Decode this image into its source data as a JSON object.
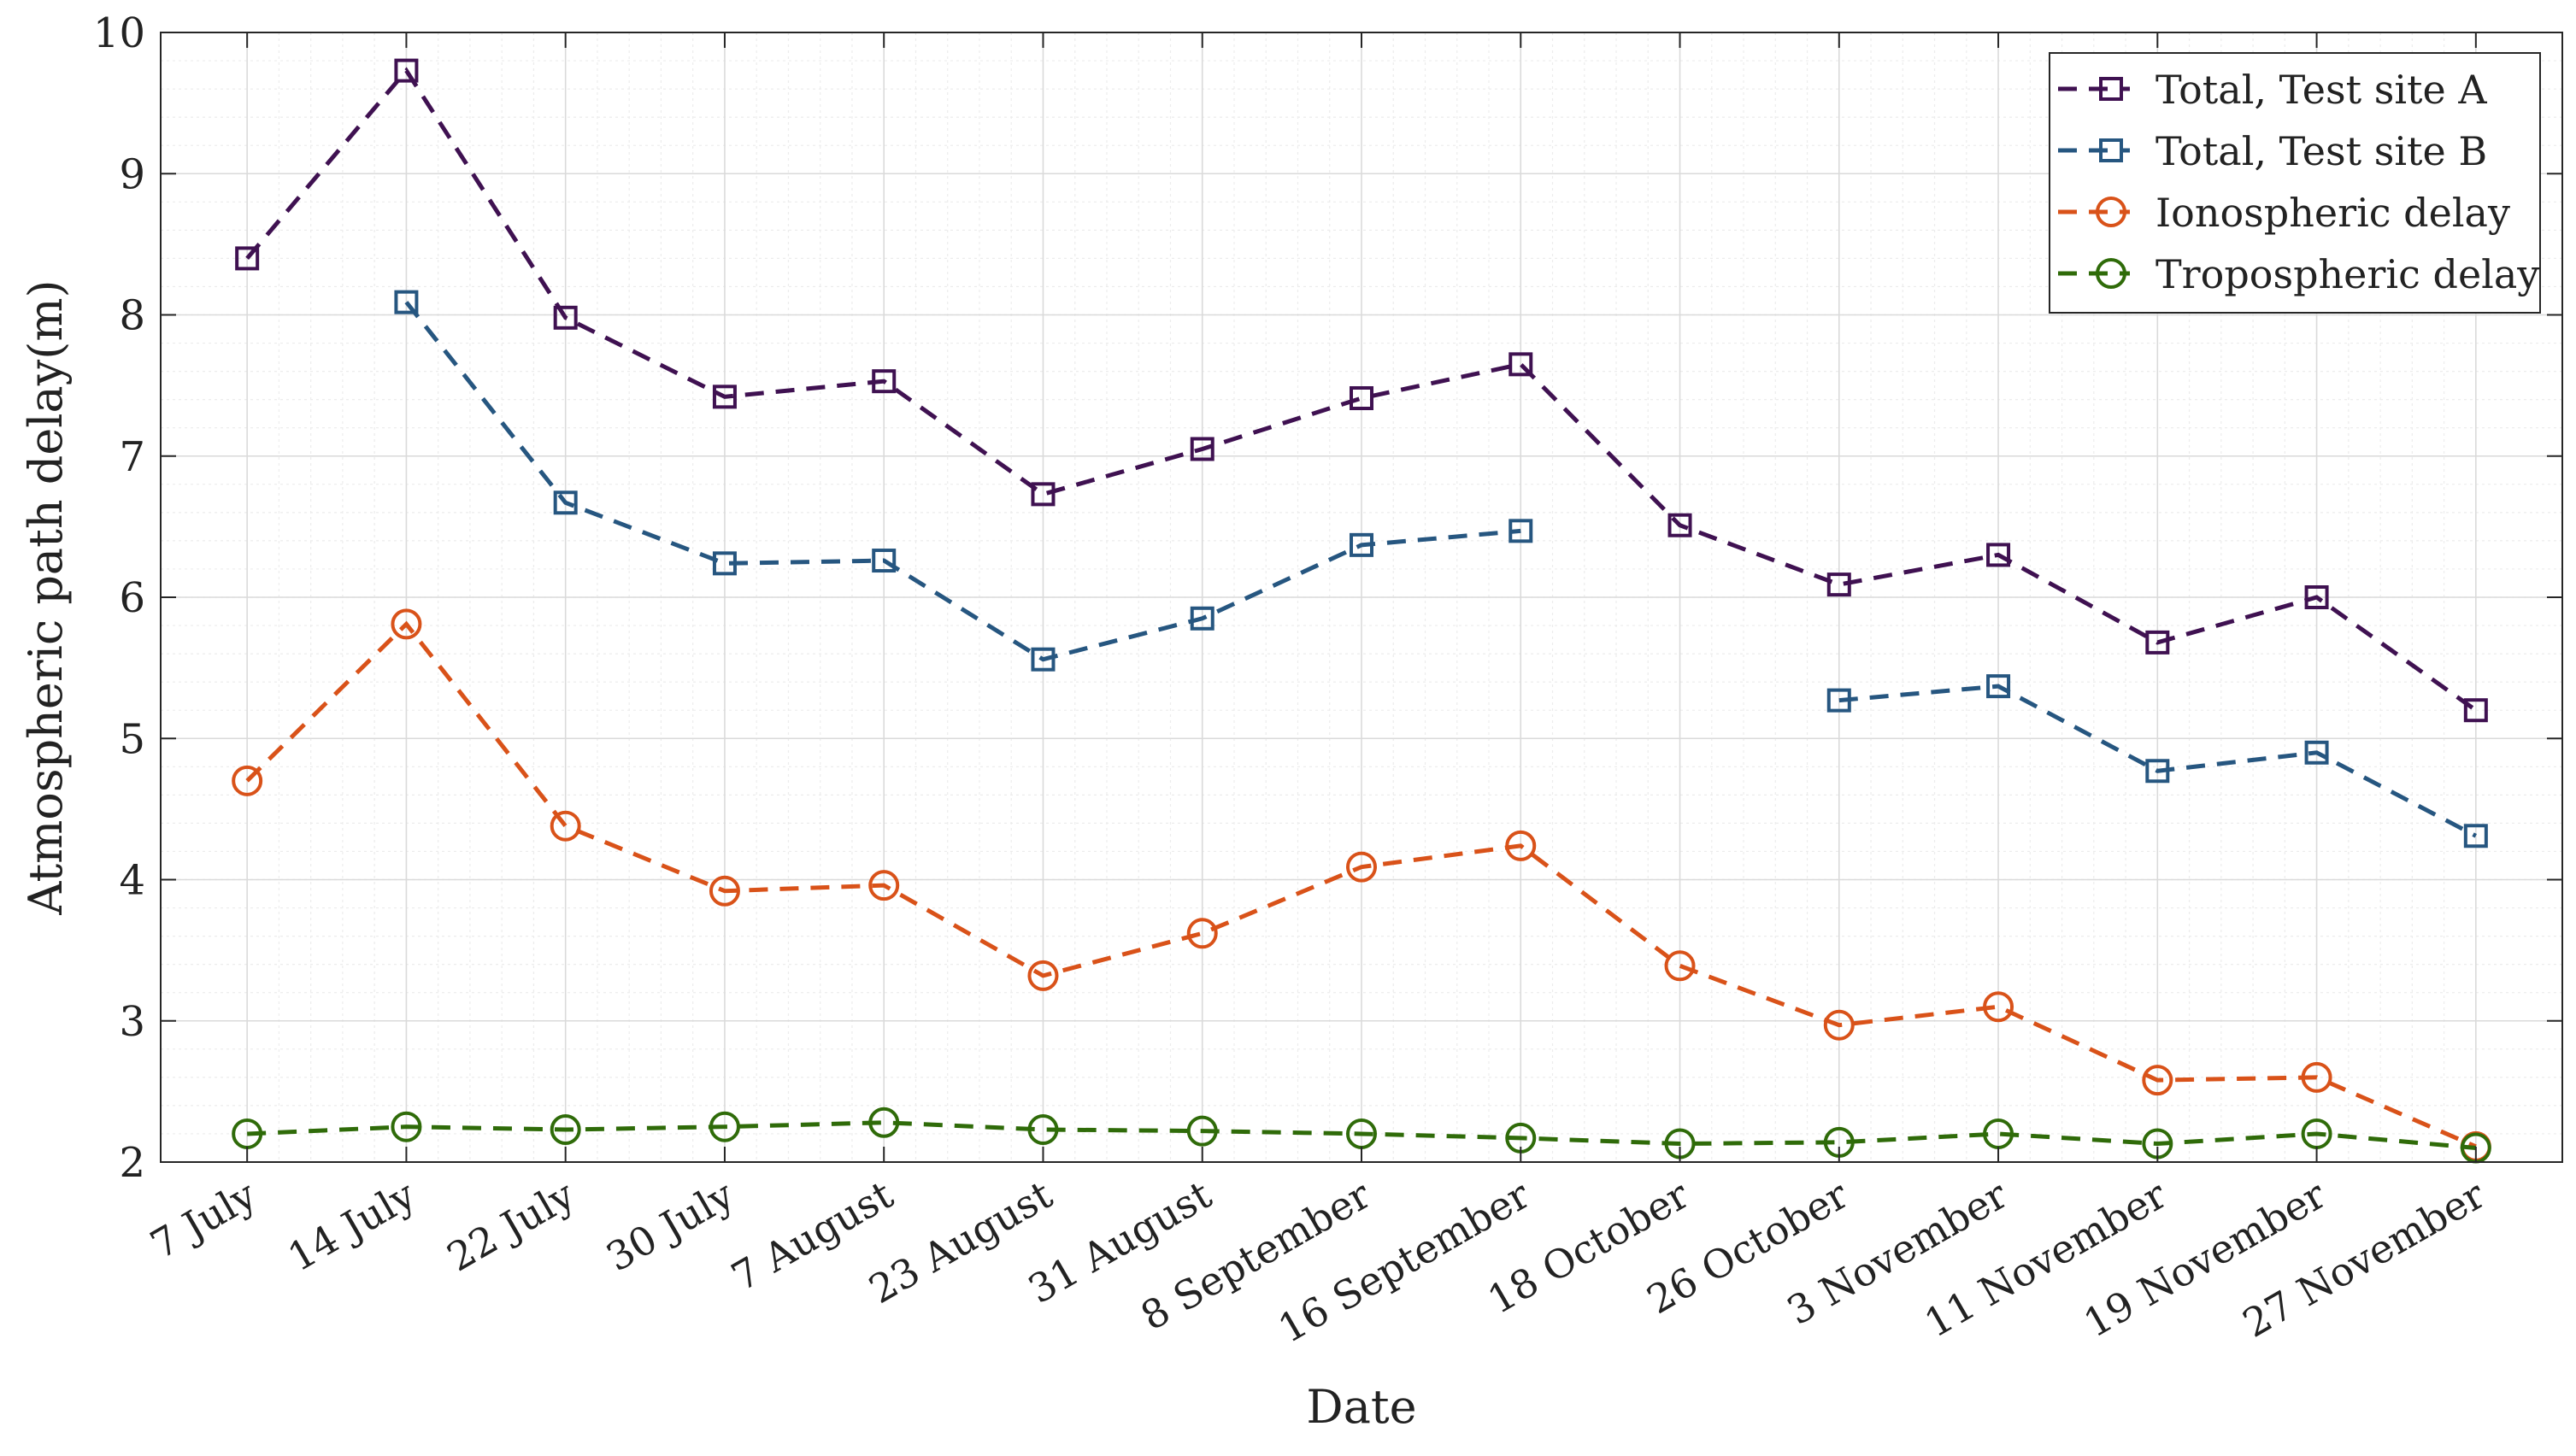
{
  "chart_data": {
    "type": "line",
    "title": "",
    "xlabel": "Date",
    "ylabel": "Atmospheric path delay(m)",
    "ylim": [
      2,
      10
    ],
    "yticks": [
      2,
      3,
      4,
      5,
      6,
      7,
      8,
      9,
      10
    ],
    "grid": true,
    "minor_grid": true,
    "legend_position": "top-right",
    "categories": [
      "7 July",
      "14 July",
      "22 July",
      "30 July",
      "7 August",
      "23 August",
      "31 August",
      "8 September",
      "16 September",
      "18 October",
      "26 October",
      "3 November",
      "11 November",
      "19 November",
      "27 November"
    ],
    "series": [
      {
        "name": "Total, Test site A",
        "color": "#3f1151",
        "marker": "square",
        "values": [
          8.4,
          9.73,
          7.98,
          7.42,
          7.53,
          6.73,
          7.05,
          7.41,
          7.65,
          6.51,
          6.09,
          6.3,
          5.68,
          6.0,
          5.2
        ]
      },
      {
        "name": "Total, Test site B",
        "color": "#265680",
        "marker": "square",
        "values": [
          null,
          8.09,
          6.67,
          6.24,
          6.26,
          5.56,
          5.85,
          6.37,
          6.47,
          null,
          5.27,
          5.37,
          4.77,
          4.9,
          4.31
        ]
      },
      {
        "name": "Ionospheric delay",
        "color": "#d95219",
        "marker": "circle",
        "values": [
          4.7,
          5.81,
          4.38,
          3.92,
          3.96,
          3.32,
          3.62,
          4.09,
          4.24,
          3.39,
          2.97,
          3.1,
          2.58,
          2.6,
          2.11
        ]
      },
      {
        "name": "Tropospheric delay",
        "color": "#2f6b09",
        "marker": "circle",
        "values": [
          2.2,
          2.25,
          2.23,
          2.25,
          2.28,
          2.23,
          2.22,
          2.2,
          2.17,
          2.13,
          2.14,
          2.2,
          2.13,
          2.2,
          2.1
        ]
      }
    ]
  }
}
